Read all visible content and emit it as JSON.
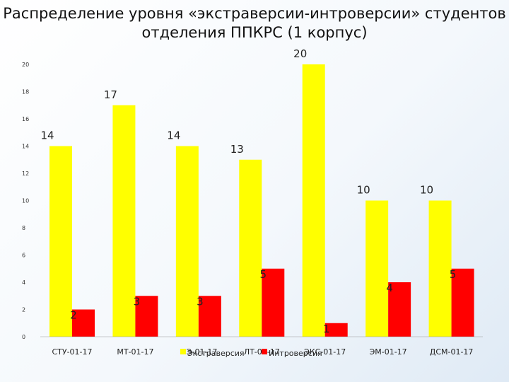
{
  "title_line1": "Распределение уровня «экстраверсии-интроверсии» студентов",
  "title_line2": "отделения ППКРС (1 корпус)",
  "chart_data": {
    "type": "bar",
    "categories": [
      "СТУ-01-17",
      "МТ-01-17",
      "МЭ-01-17",
      "ЛТ-01-17",
      "ЭКС-01-17",
      "ЭМ-01-17",
      "ДСМ-01-17"
    ],
    "series": [
      {
        "name": "Экстраверсия",
        "color": "#ffff00",
        "values": [
          14,
          17,
          14,
          13,
          20,
          10,
          10
        ]
      },
      {
        "name": "Интроверсия",
        "color": "#ff0000",
        "values": [
          2,
          3,
          3,
          5,
          1,
          4,
          5
        ]
      }
    ],
    "ylim": [
      0,
      20
    ],
    "yticks": [
      0,
      2,
      4,
      6,
      8,
      10,
      12,
      14,
      16,
      18,
      20
    ],
    "grid": false,
    "legend_position": "bottom"
  }
}
